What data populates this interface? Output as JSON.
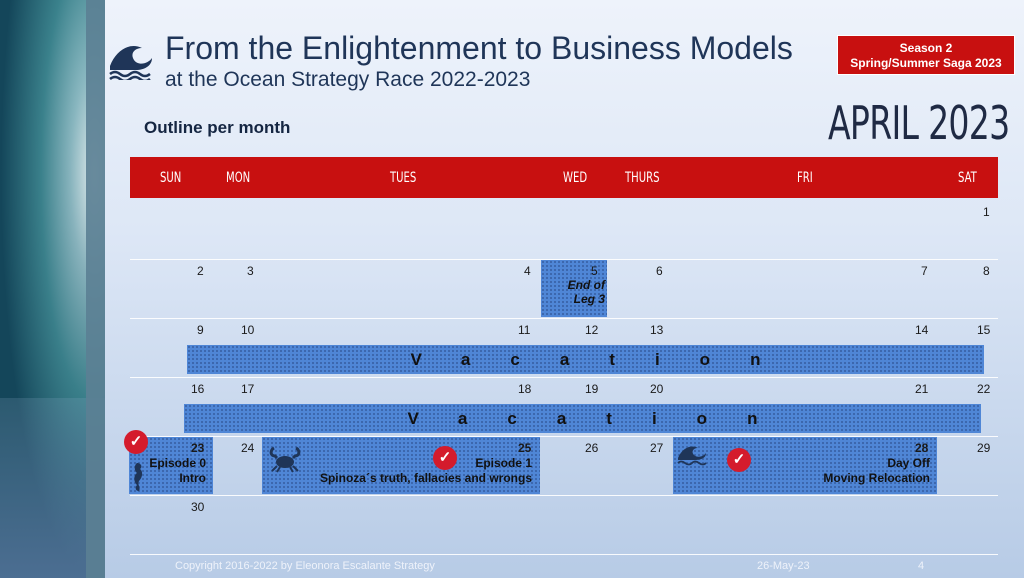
{
  "header": {
    "title": "From the Enlightenment to Business Models",
    "subtitle": "at the Ocean Strategy Race 2022-2023",
    "season_line1": "Season 2",
    "season_line2": "Spring/Summer Saga 2023",
    "outline": "Outline per month",
    "month": "APRIL 2023"
  },
  "days": [
    "SUN",
    "MON",
    "TUES",
    "WED",
    "THURS",
    "FRI",
    "SAT"
  ],
  "dates": {
    "w1": [
      "1"
    ],
    "w2": [
      "2",
      "3",
      "4",
      "5",
      "6",
      "7",
      "8"
    ],
    "w3": [
      "9",
      "10",
      "11",
      "12",
      "13",
      "14",
      "15"
    ],
    "w4": [
      "16",
      "17",
      "18",
      "19",
      "20",
      "21",
      "22"
    ],
    "w5": [
      "23",
      "24",
      "25",
      "26",
      "27",
      "28",
      "29"
    ],
    "w6": [
      "30"
    ]
  },
  "events": {
    "end_leg_line1": "End of",
    "end_leg_line2": "Leg 3",
    "vacation": "Vacation",
    "ep0_line1": "Episode 0",
    "ep0_line2": "Intro",
    "ep1_line1": "Episode 1",
    "ep1_line2": "Spinoza´s truth, fallacies and wrongs",
    "dayoff_line1": "Day Off",
    "dayoff_line2": "Moving Relocation"
  },
  "footer": {
    "copyright": "Copyright 2016-2022 by Eleonora Escalante Strategy",
    "date": "26-May-23",
    "page": "4"
  },
  "icons": {
    "logo": "wave-icon",
    "check": "checkmark-icon",
    "crab": "crab-icon",
    "seahorse": "seahorse-icon",
    "wave_small": "wave-icon"
  },
  "colors": {
    "accent_red": "#c81010",
    "event_blue": "#4f86d6",
    "title_navy": "#1f3558"
  }
}
